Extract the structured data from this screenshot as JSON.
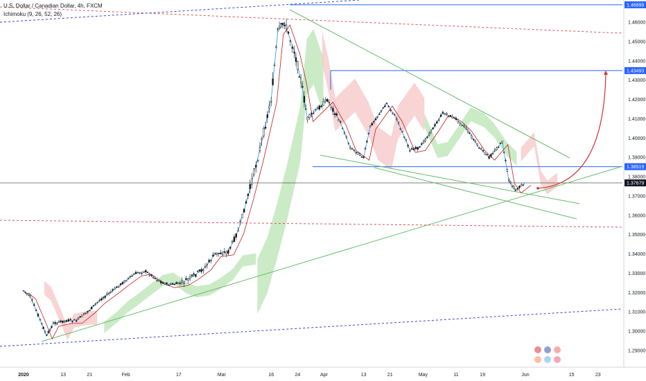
{
  "header": {
    "symbol_line": "U.S. Dollar / Canadian Dollar, 4h, FXCM",
    "indicator_line": "Ichimoku (9, 26, 52, 26)"
  },
  "colors": {
    "background": "#ffffff",
    "candle": "#111111",
    "horizontal_level": "#2962ff",
    "trendline": "#66bb6a",
    "red_dashed": "#e05050",
    "blue_dashed": "#3344cc",
    "cloud_bull": "#b9e4b4",
    "cloud_bear": "#f6c6c6",
    "price_tag_blue": "#2962ff",
    "price_tag_current": "#131722",
    "projection_arrow": "#d32f2f",
    "tenkan": "#2196f3",
    "kijun": "#b71c1c"
  },
  "chart_data": {
    "type": "line",
    "description_series": "USDCAD 4h close path (approximate)",
    "x_axis": {
      "type": "date",
      "ticks": [
        "2020",
        "13",
        "21",
        "Feb",
        "17",
        "Mar",
        "16",
        "24",
        "Apr",
        "13",
        "21",
        "May",
        "11",
        "19",
        "Jun",
        "15",
        "23"
      ]
    },
    "y_axis": {
      "range": [
        1.2855,
        1.4725
      ],
      "ticks": [
        "1.46000",
        "1.45000",
        "1.44000",
        "1.43000",
        "1.42000",
        "1.41000",
        "1.40000",
        "1.39000",
        "1.38000",
        "1.37000",
        "1.36000",
        "1.35000",
        "1.34000",
        "1.33000",
        "1.32000",
        "1.31000",
        "1.30000",
        "1.29000"
      ]
    },
    "price_labels": [
      {
        "value": "1.46899",
        "kind": "level"
      },
      {
        "value": "1.43493",
        "kind": "level"
      },
      {
        "value": "1.38519",
        "kind": "level"
      },
      {
        "value": "1.37679",
        "kind": "current"
      }
    ],
    "horizontal_levels": [
      1.46899,
      1.43493,
      1.38519
    ],
    "current_price": 1.37679,
    "series": [
      {
        "x": [
          "2020-01-01",
          "2020-01-03",
          "2020-01-06",
          "2020-01-08",
          "2020-01-10",
          "2020-01-14",
          "2020-01-17",
          "2020-01-21",
          "2020-01-24",
          "2020-01-28",
          "2020-01-31",
          "2020-02-04",
          "2020-02-07",
          "2020-02-11",
          "2020-02-14",
          "2020-02-18",
          "2020-02-21",
          "2020-02-25",
          "2020-02-28",
          "2020-03-03",
          "2020-03-06",
          "2020-03-09",
          "2020-03-12",
          "2020-03-16",
          "2020-03-18",
          "2020-03-20",
          "2020-03-23",
          "2020-03-25",
          "2020-03-27",
          "2020-03-30",
          "2020-04-02",
          "2020-04-06",
          "2020-04-09",
          "2020-04-13",
          "2020-04-15",
          "2020-04-20",
          "2020-04-23",
          "2020-04-27",
          "2020-04-30",
          "2020-05-04",
          "2020-05-07",
          "2020-05-11",
          "2020-05-14",
          "2020-05-18",
          "2020-05-21",
          "2020-05-25",
          "2020-05-27",
          "2020-05-29",
          "2020-06-01"
        ],
        "y": [
          1.321,
          1.318,
          1.306,
          1.2975,
          1.304,
          1.3055,
          1.3055,
          1.311,
          1.316,
          1.321,
          1.325,
          1.33,
          1.331,
          1.326,
          1.324,
          1.325,
          1.328,
          1.333,
          1.34,
          1.341,
          1.352,
          1.37,
          1.39,
          1.42,
          1.455,
          1.46,
          1.445,
          1.43,
          1.41,
          1.415,
          1.42,
          1.408,
          1.395,
          1.39,
          1.406,
          1.418,
          1.41,
          1.394,
          1.395,
          1.405,
          1.413,
          1.41,
          1.405,
          1.395,
          1.39,
          1.398,
          1.378,
          1.373,
          1.377
        ]
      }
    ],
    "ichimoku_params": "9, 26, 52, 26",
    "projection_target": 1.43493
  }
}
